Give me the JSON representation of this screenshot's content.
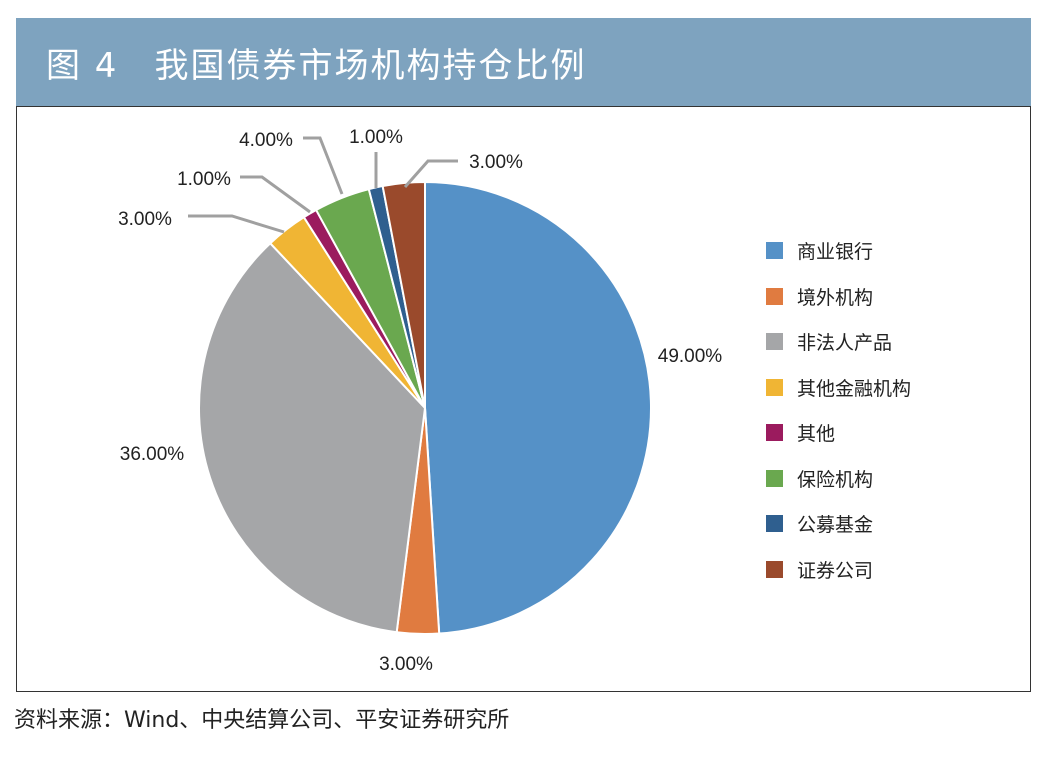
{
  "header": {
    "title": "图 4　我国债券市场机构持仓比例"
  },
  "source": "资料来源：Wind、中央结算公司、平安证券研究所",
  "chart_data": {
    "type": "pie",
    "title": "图 4　我国债券市场机构持仓比例",
    "categories": [
      "商业银行",
      "境外机构",
      "非法人产品",
      "其他金融机构",
      "其他",
      "保险机构",
      "公募基金",
      "证券公司"
    ],
    "values": [
      49,
      3,
      36,
      3,
      1,
      4,
      1,
      3
    ],
    "labels": [
      "49.00%",
      "3.00%",
      "36.00%",
      "3.00%",
      "1.00%",
      "4.00%",
      "1.00%",
      "3.00%"
    ],
    "colors": [
      "#5591c7",
      "#e07b40",
      "#a5a6a8",
      "#f0b534",
      "#9b1b5e",
      "#6aa84f",
      "#2f5f8f",
      "#9a4a2c"
    ],
    "legend_position": "right",
    "start_angle": "12 o'clock, clockwise"
  },
  "legend": [
    {
      "label": "商业银行",
      "color": "#5591c7"
    },
    {
      "label": "境外机构",
      "color": "#e07b40"
    },
    {
      "label": "非法人产品",
      "color": "#a5a6a8"
    },
    {
      "label": "其他金融机构",
      "color": "#f0b534"
    },
    {
      "label": "其他",
      "color": "#9b1b5e"
    },
    {
      "label": "保险机构",
      "color": "#6aa84f"
    },
    {
      "label": "公募基金",
      "color": "#2f5f8f"
    },
    {
      "label": "证券公司",
      "color": "#9a4a2c"
    }
  ]
}
